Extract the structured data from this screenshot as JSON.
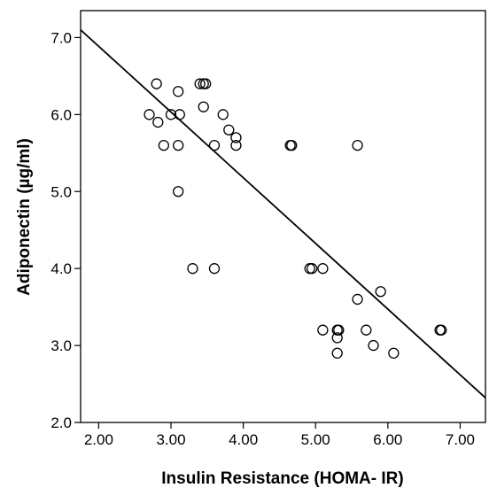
{
  "chart_data": {
    "type": "scatter",
    "title": "",
    "xlabel": "Insulin Resistance (HOMA- IR)",
    "ylabel": "Adiponectin (µg/ml)",
    "xlim": [
      1.75,
      7.35
    ],
    "ylim": [
      2.0,
      7.35
    ],
    "x_ticks": [
      2.0,
      3.0,
      4.0,
      5.0,
      6.0,
      7.0
    ],
    "x_tick_labels": [
      "2.00",
      "3.00",
      "4.00",
      "5.00",
      "6.00",
      "7.00"
    ],
    "y_ticks": [
      2.0,
      3.0,
      4.0,
      5.0,
      6.0,
      7.0
    ],
    "y_tick_labels": [
      "2.0",
      "3.0",
      "4.0",
      "5.0",
      "6.0",
      "7.0"
    ],
    "grid": false,
    "marker": "open-circle",
    "points": [
      {
        "x": 2.7,
        "y": 6.0
      },
      {
        "x": 2.8,
        "y": 6.4
      },
      {
        "x": 2.82,
        "y": 5.9
      },
      {
        "x": 2.9,
        "y": 5.6
      },
      {
        "x": 3.0,
        "y": 6.0
      },
      {
        "x": 3.1,
        "y": 6.3
      },
      {
        "x": 3.12,
        "y": 6.0
      },
      {
        "x": 3.1,
        "y": 5.6
      },
      {
        "x": 3.1,
        "y": 5.0
      },
      {
        "x": 3.3,
        "y": 4.0
      },
      {
        "x": 3.4,
        "y": 6.4
      },
      {
        "x": 3.45,
        "y": 6.4
      },
      {
        "x": 3.48,
        "y": 6.4
      },
      {
        "x": 3.45,
        "y": 6.1
      },
      {
        "x": 3.6,
        "y": 5.6
      },
      {
        "x": 3.6,
        "y": 4.0
      },
      {
        "x": 3.72,
        "y": 6.0
      },
      {
        "x": 3.8,
        "y": 5.8
      },
      {
        "x": 3.9,
        "y": 5.7
      },
      {
        "x": 3.9,
        "y": 5.6
      },
      {
        "x": 4.65,
        "y": 5.6
      },
      {
        "x": 4.67,
        "y": 5.6
      },
      {
        "x": 4.92,
        "y": 4.0
      },
      {
        "x": 4.95,
        "y": 4.0
      },
      {
        "x": 5.1,
        "y": 4.0
      },
      {
        "x": 5.1,
        "y": 3.2
      },
      {
        "x": 5.3,
        "y": 3.2
      },
      {
        "x": 5.32,
        "y": 3.2
      },
      {
        "x": 5.3,
        "y": 3.1
      },
      {
        "x": 5.3,
        "y": 2.9
      },
      {
        "x": 5.58,
        "y": 5.6
      },
      {
        "x": 5.58,
        "y": 3.6
      },
      {
        "x": 5.7,
        "y": 3.2
      },
      {
        "x": 5.8,
        "y": 3.0
      },
      {
        "x": 5.9,
        "y": 3.7
      },
      {
        "x": 6.08,
        "y": 2.9
      },
      {
        "x": 6.72,
        "y": 3.2
      },
      {
        "x": 6.74,
        "y": 3.2
      }
    ],
    "fit_line": {
      "x": [
        1.75,
        7.35
      ],
      "y": [
        7.1,
        2.32
      ]
    }
  }
}
